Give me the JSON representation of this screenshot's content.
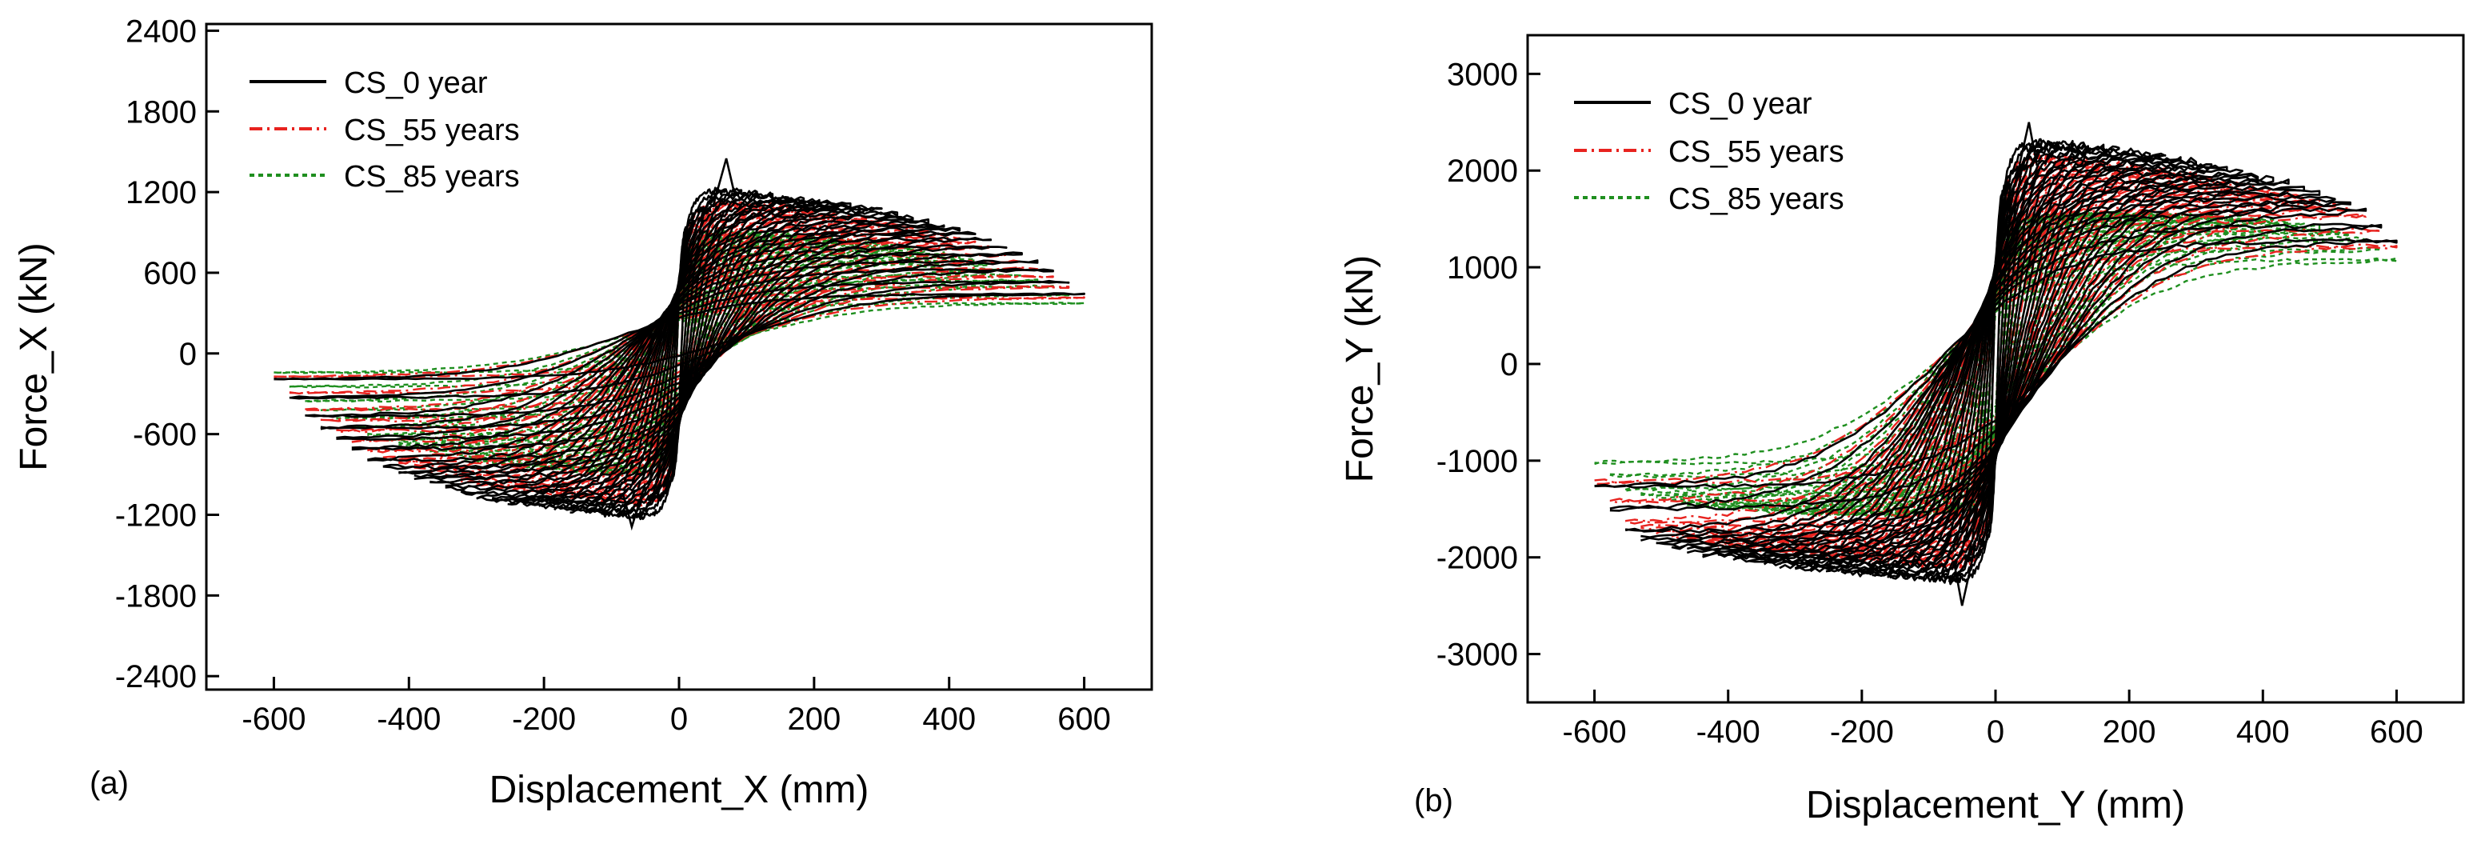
{
  "figure": {
    "panels": [
      {
        "label": "(a)"
      },
      {
        "label": "(b)"
      }
    ]
  },
  "chart_data": [
    {
      "type": "line",
      "panel": "(a)",
      "title": "",
      "xlabel": "Displacement_X (mm)",
      "ylabel": "Force_X (kN)",
      "xlim": [
        -700,
        700
      ],
      "ylim": [
        -2500,
        2450
      ],
      "xticks": [
        -600,
        -400,
        -200,
        0,
        200,
        400,
        600
      ],
      "yticks": [
        -2400,
        -1800,
        -1200,
        -600,
        0,
        600,
        1200,
        1800,
        2400
      ],
      "legend_position": "top-left",
      "grid": false,
      "envelope": {
        "peak_positive": {
          "x": 70,
          "y": 1450
        },
        "peak_negative": {
          "x": -70,
          "y": -1290
        },
        "max_displacement": 600
      },
      "series": [
        {
          "name": "CS_0 year",
          "color": "#000000",
          "dash": "solid",
          "positive_envelope": {
            "x": [
              30,
              70,
              150,
              300,
              450,
              550,
              600
            ],
            "y": [
              1000,
              1250,
              1200,
              1100,
              900,
              650,
              450
            ]
          },
          "negative_envelope": {
            "x": [
              -600,
              -550,
              -450,
              -300,
              -150,
              -70,
              -30
            ],
            "y": [
              -200,
              -500,
              -850,
              -1100,
              -1200,
              -1250,
              -1000
            ]
          }
        },
        {
          "name": "CS_55 years",
          "color": "#e8231f",
          "dash": "dashdot",
          "positive_envelope": {
            "x": [
              30,
              70,
              150,
              300,
              450,
              550,
              600
            ],
            "y": [
              950,
              1150,
              1120,
              1020,
              830,
              600,
              420
            ]
          },
          "negative_envelope": {
            "x": [
              -600,
              -550,
              -450,
              -300,
              -150,
              -70,
              -30
            ],
            "y": [
              -180,
              -450,
              -780,
              -1000,
              -1100,
              -1150,
              -950
            ]
          }
        },
        {
          "name": "CS_85 years",
          "color": "#1f8f1f",
          "dash": "dotted",
          "positive_envelope": {
            "x": [
              30,
              70,
              150,
              300,
              450,
              550,
              600
            ],
            "y": [
              800,
              930,
              910,
              850,
              700,
              520,
              380
            ]
          },
          "negative_envelope": {
            "x": [
              -600,
              -550,
              -450,
              -300,
              -150,
              -70,
              -30
            ],
            "y": [
              -150,
              -380,
              -650,
              -820,
              -900,
              -920,
              -800
            ]
          }
        }
      ]
    },
    {
      "type": "line",
      "panel": "(b)",
      "title": "",
      "xlabel": "Displacement_Y (mm)",
      "ylabel": "Force_Y (kN)",
      "xlim": [
        -700,
        700
      ],
      "ylim": [
        -3500,
        3400
      ],
      "xticks": [
        -600,
        -400,
        -200,
        0,
        200,
        400,
        600
      ],
      "yticks": [
        -3000,
        -2000,
        -1000,
        0,
        1000,
        2000,
        3000
      ],
      "legend_position": "top-left",
      "grid": false,
      "envelope": {
        "peak_positive": {
          "x": 50,
          "y": 2500
        },
        "peak_negative": {
          "x": -50,
          "y": -2500
        },
        "max_displacement": 600
      },
      "series": [
        {
          "name": "CS_0 year",
          "color": "#000000",
          "dash": "solid",
          "positive_envelope": {
            "x": [
              30,
              70,
              150,
              300,
              450,
              550,
              600
            ],
            "y": [
              1900,
              2350,
              2300,
              2150,
              1900,
              1650,
              1300
            ]
          },
          "negative_envelope": {
            "x": [
              -600,
              -550,
              -450,
              -300,
              -150,
              -70,
              -30
            ],
            "y": [
              -1300,
              -1800,
              -2000,
              -2150,
              -2250,
              -2300,
              -1900
            ]
          }
        },
        {
          "name": "CS_55 years",
          "color": "#e8231f",
          "dash": "dashdot",
          "positive_envelope": {
            "x": [
              30,
              70,
              150,
              300,
              450,
              550,
              600
            ],
            "y": [
              1800,
              2200,
              2150,
              2000,
              1800,
              1600,
              1250
            ]
          },
          "negative_envelope": {
            "x": [
              -600,
              -550,
              -450,
              -300,
              -150,
              -70,
              -30
            ],
            "y": [
              -1250,
              -1700,
              -1900,
              -2000,
              -2100,
              -2150,
              -1800
            ]
          }
        },
        {
          "name": "CS_85 years",
          "color": "#1f8f1f",
          "dash": "dotted",
          "positive_envelope": {
            "x": [
              30,
              70,
              150,
              300,
              450,
              550,
              600
            ],
            "y": [
              1300,
              1550,
              1600,
              1580,
              1500,
              1350,
              1100
            ]
          },
          "negative_envelope": {
            "x": [
              -600,
              -550,
              -450,
              -300,
              -150,
              -70,
              -30
            ],
            "y": [
              -1050,
              -1350,
              -1500,
              -1580,
              -1600,
              -1550,
              -1250
            ]
          }
        }
      ]
    }
  ]
}
